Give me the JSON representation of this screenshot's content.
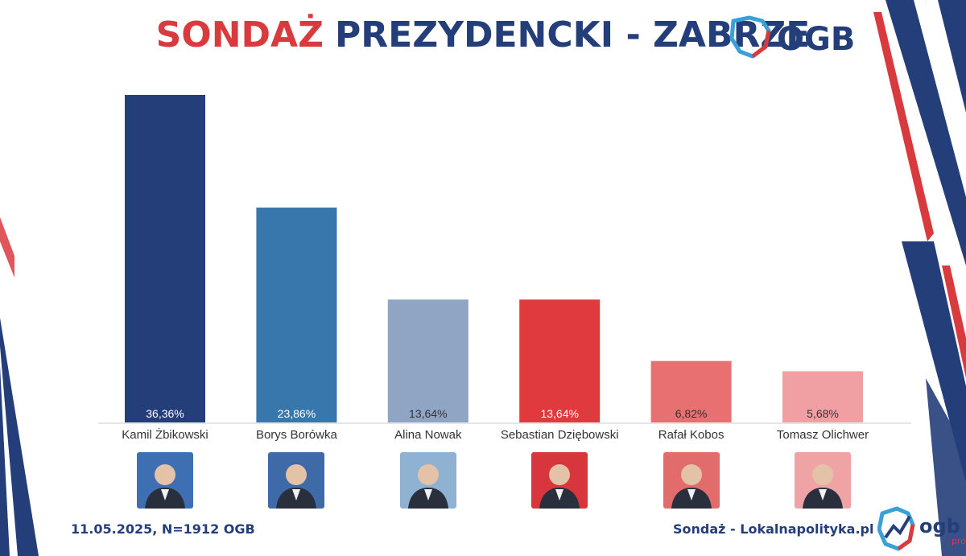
{
  "title": {
    "part1": "SONDAŻ",
    "part2": "PREZYDENCKI - ZABRZE"
  },
  "logo": {
    "text": "OGB",
    "icon": "poland-map-outline-icon"
  },
  "logo_bottom": {
    "text": "ogb",
    "sub": "pro",
    "icon": "poland-map-chart-icon"
  },
  "footer": {
    "left": "11.05.2025, N=1912 OGB",
    "right": "Sondaż - Lokalnapolityka.pl"
  },
  "colors": {
    "title_red": "#d93a3e",
    "title_blue": "#243e7a",
    "bars": [
      "#243e7a",
      "#3877ab",
      "#8fa5c3",
      "#e03a3e",
      "#e87070",
      "#f0a0a2"
    ],
    "photo_bg": [
      "#3d6fb2",
      "#3e6aa8",
      "#8fb1d2",
      "#d7373c",
      "#e26c6c",
      "#f0a3a4"
    ]
  },
  "chart_data": {
    "type": "bar",
    "categories": [
      "Kamil Żbikowski",
      "Borys Borówka",
      "Alina Nowak",
      "Sebastian Dziębowski",
      "Rafał Kobos",
      "Tomasz Olichwer"
    ],
    "values": [
      36.36,
      23.86,
      13.64,
      13.64,
      6.82,
      5.68
    ],
    "value_labels": [
      "36,36%",
      "23,86%",
      "13,64%",
      "13,64%",
      "6,82%",
      "5,68%"
    ],
    "ylim": [
      0,
      36.36
    ],
    "grid": false,
    "legend": "none"
  },
  "photos": [
    {
      "icon": "candidate-photo-icon"
    },
    {
      "icon": "candidate-photo-icon"
    },
    {
      "icon": "candidate-photo-icon"
    },
    {
      "icon": "candidate-photo-icon"
    },
    {
      "icon": "candidate-photo-icon"
    },
    {
      "icon": "candidate-photo-icon"
    }
  ]
}
